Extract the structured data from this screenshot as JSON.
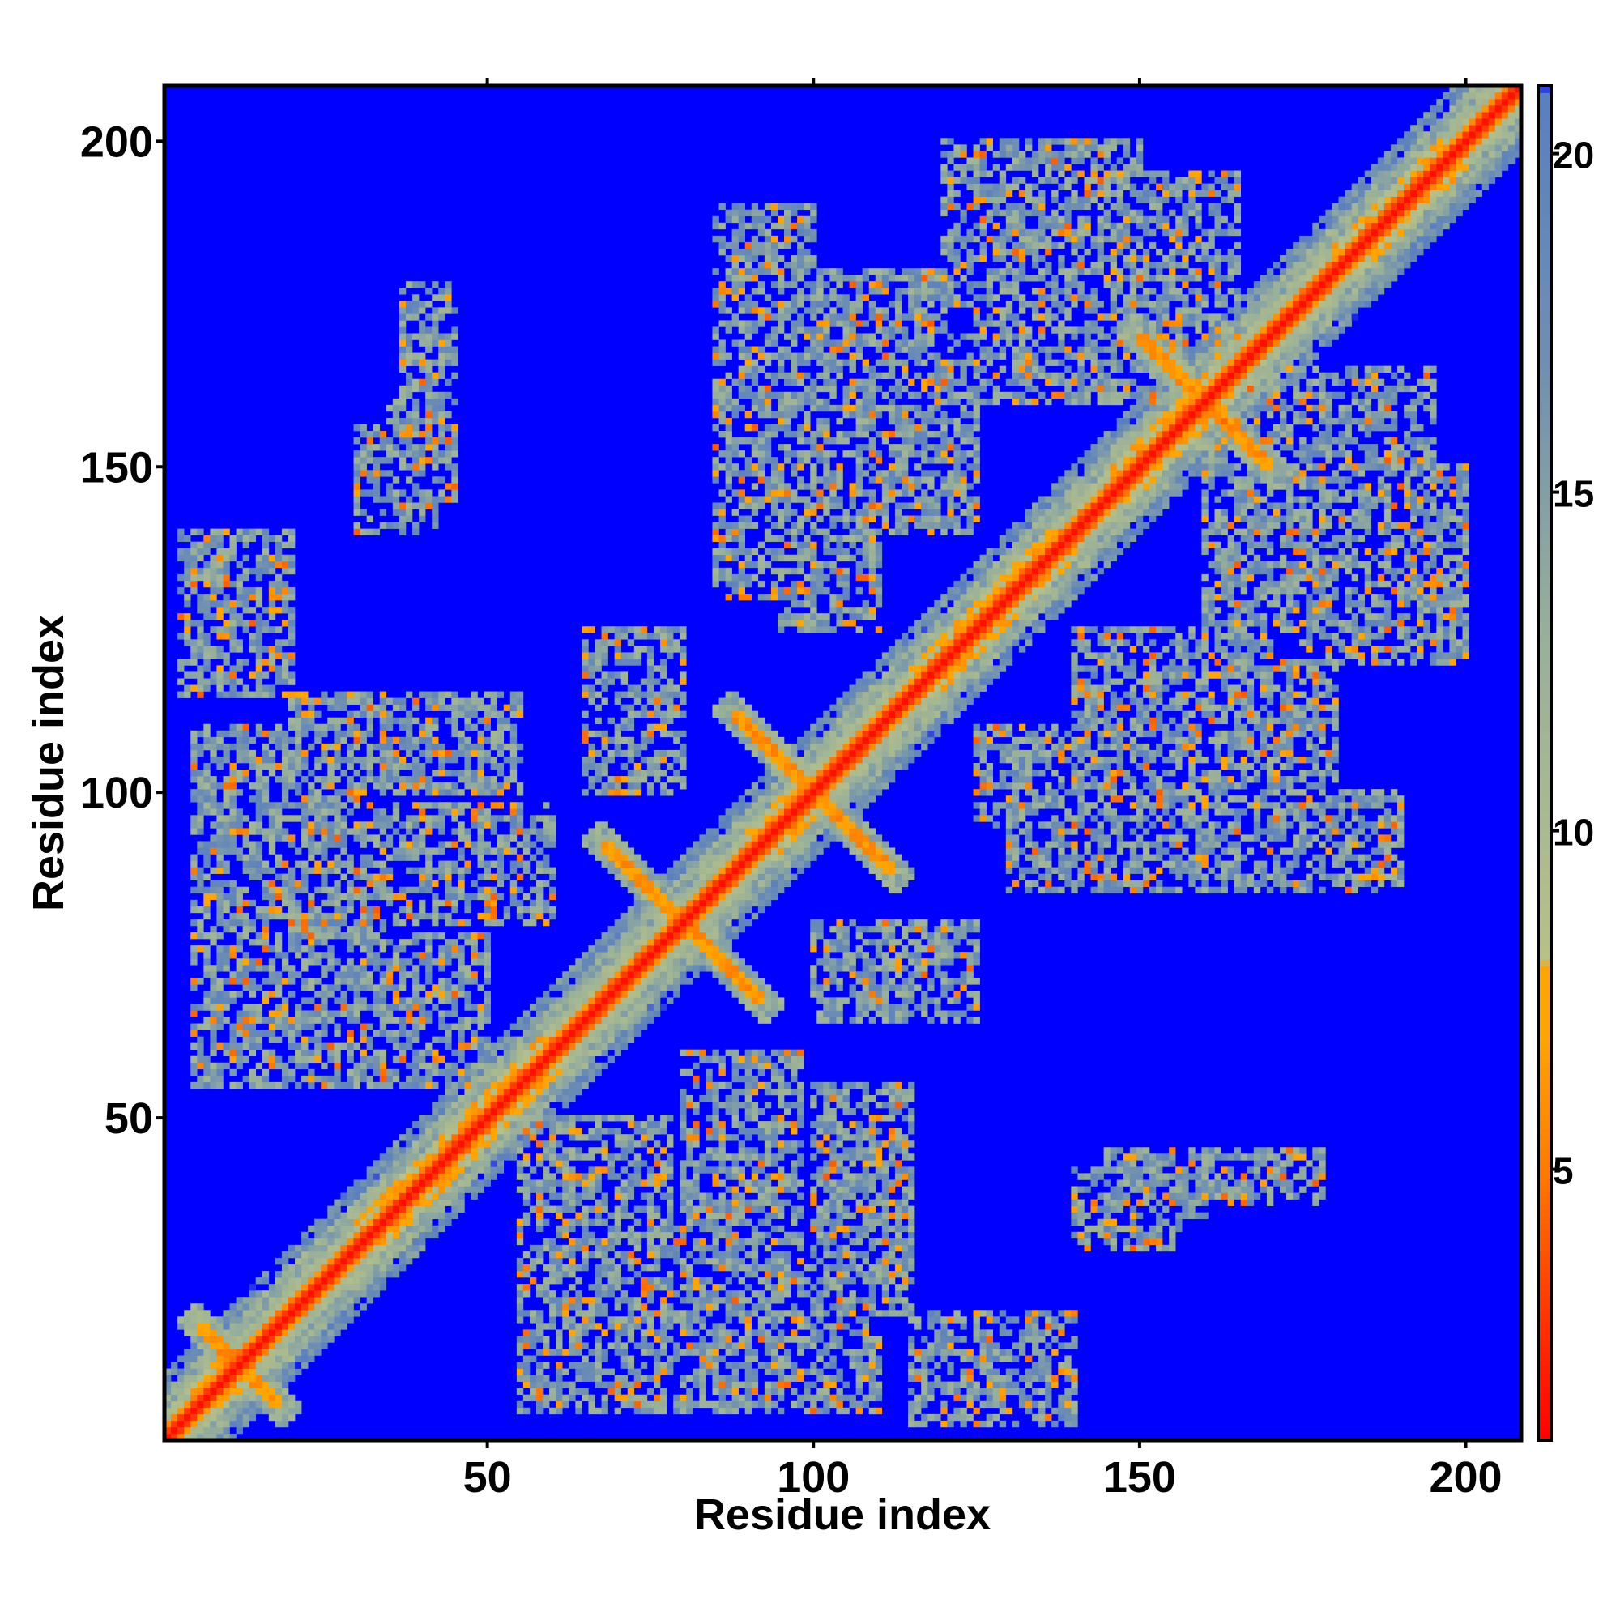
{
  "chart_data": {
    "type": "heatmap",
    "title": "",
    "xlabel": "Residue index",
    "ylabel": "Residue index",
    "xlim": [
      1,
      208
    ],
    "ylim": [
      1,
      208
    ],
    "x_ticks": [
      "50",
      "100",
      "150",
      "200"
    ],
    "y_ticks": [
      "50",
      "100",
      "150",
      "200"
    ],
    "colorbar": {
      "range": [
        1,
        21
      ],
      "ticks": [
        "5",
        "10",
        "15",
        "20"
      ],
      "stops": [
        {
          "value": 1,
          "color": "#ff0000"
        },
        {
          "value": 3,
          "color": "#ff3a00"
        },
        {
          "value": 5,
          "color": "#ff7b00"
        },
        {
          "value": 7,
          "color": "#ffa500"
        },
        {
          "value": 8,
          "color": "#ffa500"
        },
        {
          "value": 8.1,
          "color": "#b7c188"
        },
        {
          "value": 13,
          "color": "#97af9a"
        },
        {
          "value": 17,
          "color": "#6e8fb2"
        },
        {
          "value": 20.9,
          "color": "#5a7fc0"
        },
        {
          "value": 21,
          "color": "#0000ff"
        }
      ]
    },
    "background_color": "#0000ff",
    "structure": {
      "helices": [
        [
          5,
          13
        ],
        [
          30,
          50
        ],
        [
          50,
          62
        ],
        [
          90,
          100
        ],
        [
          115,
          140
        ],
        [
          145,
          165
        ],
        [
          180,
          200
        ]
      ],
      "antidiagonal_contacts": [
        {
          "i": 12,
          "j": 12,
          "half_len": 6
        },
        {
          "i": 80,
          "j": 80,
          "half_len": 12
        },
        {
          "i": 100,
          "j": 100,
          "half_len": 12
        },
        {
          "i": 160,
          "j": 160,
          "half_len": 10
        }
      ],
      "off_diagonal_blocks": [
        {
          "x": [
            3,
            20
          ],
          "y": [
            115,
            140
          ]
        },
        {
          "x": [
            20,
            55
          ],
          "y": [
            100,
            115
          ]
        },
        {
          "x": [
            5,
            60
          ],
          "y": [
            80,
            98
          ]
        },
        {
          "x": [
            10,
            50
          ],
          "y": [
            55,
            78
          ]
        },
        {
          "x": [
            30,
            42
          ],
          "y": [
            140,
            156
          ]
        },
        {
          "x": [
            37,
            45
          ],
          "y": [
            160,
            178
          ]
        },
        {
          "x": [
            55,
            85
          ],
          "y": [
            5,
            35
          ]
        },
        {
          "x": [
            85,
            110
          ],
          "y": [
            5,
            30
          ]
        },
        {
          "x": [
            115,
            140
          ],
          "y": [
            3,
            20
          ]
        },
        {
          "x": [
            100,
            125
          ],
          "y": [
            65,
            80
          ]
        },
        {
          "x": [
            125,
            150
          ],
          "y": [
            95,
            110
          ]
        },
        {
          "x": [
            140,
            170
          ],
          "y": [
            100,
            125
          ]
        },
        {
          "x": [
            145,
            160
          ],
          "y": [
            35,
            45
          ]
        },
        {
          "x": [
            165,
            175
          ],
          "y": [
            38,
            45
          ]
        },
        {
          "x": [
            120,
            150
          ],
          "y": [
            175,
            200
          ]
        },
        {
          "x": [
            100,
            120
          ],
          "y": [
            140,
            180
          ]
        },
        {
          "x": [
            85,
            100
          ],
          "y": [
            130,
            190
          ]
        },
        {
          "x": [
            160,
            185
          ],
          "y": [
            125,
            165
          ]
        },
        {
          "x": [
            175,
            195
          ],
          "y": [
            150,
            165
          ]
        }
      ]
    }
  }
}
